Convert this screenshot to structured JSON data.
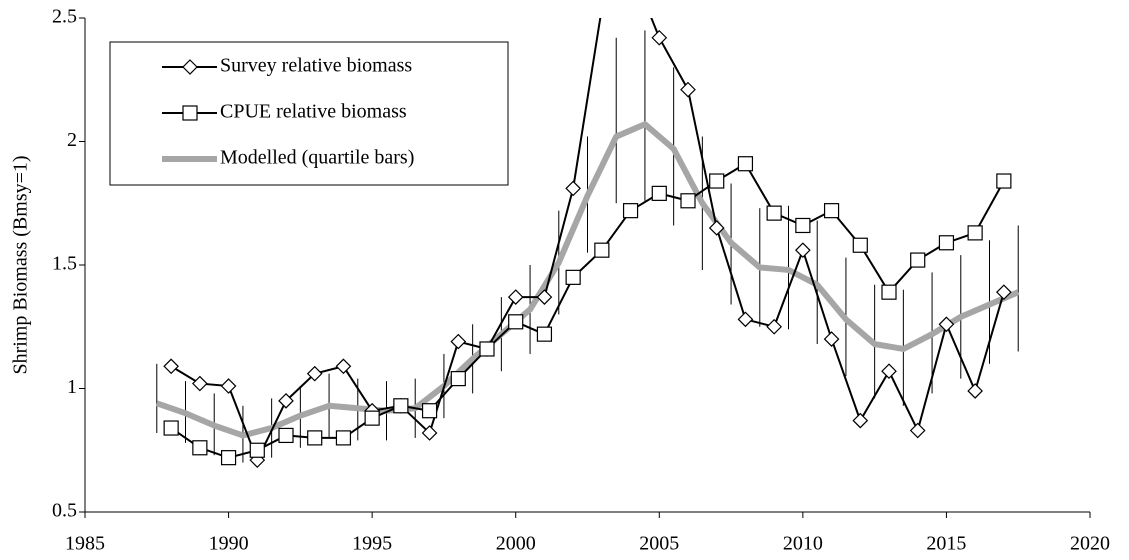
{
  "chart_data": {
    "type": "line",
    "y_label": "Shrimp Biomass (Bmsy=1)",
    "xlim": [
      1985,
      2020
    ],
    "xticks": [
      1985,
      1990,
      1995,
      2000,
      2005,
      2010,
      2015,
      2020
    ],
    "ylim": [
      0.5,
      2.5
    ],
    "yticks": [
      0.5,
      1,
      1.5,
      2,
      2.5
    ],
    "grid": false,
    "legend": "top-left",
    "series": [
      {
        "name": "Survey relative biomass",
        "color": "#000000",
        "marker": "diamond",
        "x": [
          1988,
          1989,
          1990,
          1991,
          1992,
          1993,
          1994,
          1995,
          1996,
          1997,
          1998,
          1999,
          2000,
          2001,
          2002,
          2003,
          2004,
          2005,
          2006,
          2007,
          2008,
          2009,
          2010,
          2011,
          2012,
          2013,
          2014,
          2015,
          2016,
          2017
        ],
        "values": [
          1.09,
          1.02,
          1.01,
          0.71,
          0.95,
          1.06,
          1.09,
          0.91,
          0.93,
          0.82,
          1.19,
          1.16,
          1.37,
          1.37,
          1.81,
          2.54,
          2.71,
          2.42,
          2.21,
          1.65,
          1.28,
          1.25,
          1.56,
          1.2,
          0.87,
          1.07,
          0.83,
          1.26,
          0.99,
          1.39
        ]
      },
      {
        "name": "CPUE relative biomass",
        "color": "#000000",
        "marker": "square",
        "x": [
          1988,
          1989,
          1990,
          1991,
          1992,
          1993,
          1994,
          1995,
          1996,
          1997,
          1998,
          1999,
          2000,
          2001,
          2002,
          2003,
          2004,
          2005,
          2006,
          2007,
          2008,
          2009,
          2010,
          2011,
          2012,
          2013,
          2014,
          2015,
          2016,
          2017
        ],
        "values": [
          0.84,
          0.76,
          0.72,
          0.75,
          0.81,
          0.8,
          0.8,
          0.88,
          0.93,
          0.91,
          1.04,
          1.16,
          1.27,
          1.22,
          1.45,
          1.56,
          1.72,
          1.79,
          1.76,
          1.84,
          1.91,
          1.71,
          1.66,
          1.72,
          1.58,
          1.39,
          1.52,
          1.59,
          1.63,
          1.84
        ]
      },
      {
        "name": "Modelled (quartile bars)",
        "color": "#a6a6a6",
        "marker": "none",
        "x": [
          1987.5,
          1988.5,
          1989.5,
          1990.5,
          1991.5,
          1992.5,
          1993.5,
          1994.5,
          1995.5,
          1996.5,
          1997.5,
          1998.5,
          1999.5,
          2000.5,
          2001.5,
          2002.5,
          2003.5,
          2004.5,
          2005.5,
          2006.5,
          2007.5,
          2008.5,
          2009.5,
          2010.5,
          2011.5,
          2012.5,
          2013.5,
          2014.5,
          2015.5,
          2016.5,
          2017.5
        ],
        "values": [
          0.94,
          0.9,
          0.85,
          0.81,
          0.84,
          0.89,
          0.93,
          0.92,
          0.91,
          0.92,
          1.01,
          1.12,
          1.22,
          1.32,
          1.51,
          1.78,
          2.02,
          2.07,
          1.97,
          1.75,
          1.59,
          1.49,
          1.48,
          1.42,
          1.28,
          1.18,
          1.16,
          1.22,
          1.29,
          1.34,
          1.39
        ],
        "lower": [
          0.82,
          0.78,
          0.73,
          0.7,
          0.72,
          0.76,
          0.8,
          0.79,
          0.79,
          0.8,
          0.88,
          0.98,
          1.07,
          1.14,
          1.3,
          1.55,
          1.75,
          1.76,
          1.66,
          1.48,
          1.34,
          1.25,
          1.24,
          1.18,
          1.05,
          0.96,
          0.93,
          0.98,
          1.04,
          1.1,
          1.15
        ],
        "upper": [
          1.1,
          1.03,
          0.98,
          0.93,
          0.96,
          1.01,
          1.06,
          1.04,
          1.03,
          1.04,
          1.14,
          1.26,
          1.37,
          1.5,
          1.72,
          2.02,
          2.42,
          2.45,
          2.3,
          2.02,
          1.83,
          1.73,
          1.74,
          1.68,
          1.53,
          1.42,
          1.4,
          1.47,
          1.54,
          1.6,
          1.66
        ]
      }
    ]
  }
}
